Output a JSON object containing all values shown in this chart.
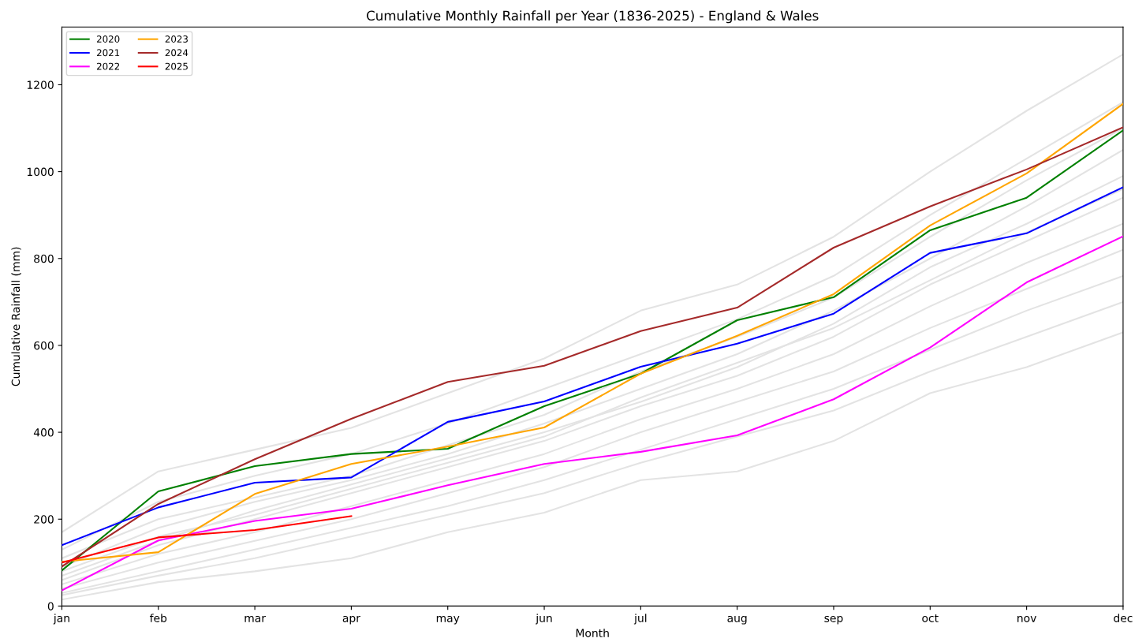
{
  "chart_data": {
    "type": "line",
    "title": "Cumulative Monthly Rainfall per Year (1836-2025) - England & Wales",
    "xlabel": "Month",
    "ylabel": "Cumulative Rainfall (mm)",
    "categories": [
      "jan",
      "feb",
      "mar",
      "apr",
      "may",
      "jun",
      "jul",
      "aug",
      "sep",
      "oct",
      "nov",
      "dec"
    ],
    "ylim": [
      0,
      1333
    ],
    "yticks": [
      0,
      200,
      400,
      600,
      800,
      1000,
      1200
    ],
    "grid": false,
    "legend": "top left",
    "marker": "none",
    "line_style": "solid",
    "series": [
      {
        "color": "#e3e3e3",
        "values": [
          170,
          310,
          360,
          410,
          490,
          570,
          680,
          740,
          850,
          1000,
          1140,
          1270
        ]
      },
      {
        "color": "#e3e3e3",
        "values": [
          15,
          55,
          80,
          110,
          170,
          215,
          290,
          310,
          380,
          490,
          550,
          630
        ]
      },
      {
        "color": "#e3e3e3",
        "values": [
          60,
          140,
          200,
          260,
          320,
          380,
          460,
          530,
          620,
          740,
          840,
          940
        ]
      },
      {
        "color": "#e3e3e3",
        "values": [
          90,
          180,
          240,
          290,
          350,
          420,
          500,
          580,
          680,
          800,
          920,
          1050
        ]
      },
      {
        "color": "#e3e3e3",
        "values": [
          40,
          100,
          150,
          200,
          260,
          320,
          400,
          470,
          540,
          640,
          730,
          820
        ]
      },
      {
        "color": "#e3e3e3",
        "values": [
          110,
          200,
          250,
          300,
          370,
          440,
          540,
          620,
          710,
          850,
          980,
          1100
        ]
      },
      {
        "color": "#e3e3e3",
        "values": [
          30,
          80,
          130,
          180,
          230,
          290,
          360,
          430,
          500,
          590,
          680,
          760
        ]
      },
      {
        "color": "#e3e3e3",
        "values": [
          70,
          150,
          220,
          280,
          340,
          400,
          470,
          550,
          650,
          780,
          880,
          990
        ]
      },
      {
        "color": "#e3e3e3",
        "values": [
          50,
          120,
          170,
          230,
          290,
          350,
          430,
          500,
          580,
          690,
          790,
          880
        ]
      },
      {
        "color": "#e3e3e3",
        "values": [
          25,
          70,
          110,
          160,
          210,
          260,
          330,
          390,
          450,
          540,
          620,
          700
        ]
      },
      {
        "color": "#e3e3e3",
        "values": [
          130,
          240,
          300,
          350,
          420,
          500,
          580,
          660,
          760,
          900,
          1030,
          1160
        ]
      },
      {
        "color": "#e3e3e3",
        "values": [
          80,
          160,
          210,
          270,
          330,
          390,
          480,
          560,
          640,
          750,
          860,
          960
        ]
      },
      {
        "name": "2020",
        "color": "#008000",
        "values": [
          82,
          264,
          322,
          350,
          362,
          460,
          535,
          658,
          711,
          865,
          940,
          1095
        ]
      },
      {
        "name": "2021",
        "color": "#0000ff",
        "values": [
          140,
          227,
          284,
          296,
          424,
          471,
          551,
          604,
          673,
          813,
          858,
          964
        ]
      },
      {
        "name": "2022",
        "color": "#ff00ff",
        "values": [
          36,
          151,
          196,
          224,
          278,
          327,
          355,
          393,
          476,
          595,
          745,
          851
        ]
      },
      {
        "name": "2023",
        "color": "#ffa500",
        "values": [
          102,
          124,
          258,
          327,
          367,
          411,
          535,
          622,
          718,
          876,
          996,
          1156
        ]
      },
      {
        "name": "2024",
        "color": "#a52a2a",
        "values": [
          91,
          235,
          338,
          431,
          516,
          553,
          633,
          687,
          825,
          920,
          1005,
          1102
        ]
      },
      {
        "name": "2025",
        "color": "#ff0000",
        "values": [
          100,
          158,
          175,
          207,
          null,
          null,
          null,
          null,
          null,
          null,
          null,
          null
        ]
      }
    ]
  }
}
